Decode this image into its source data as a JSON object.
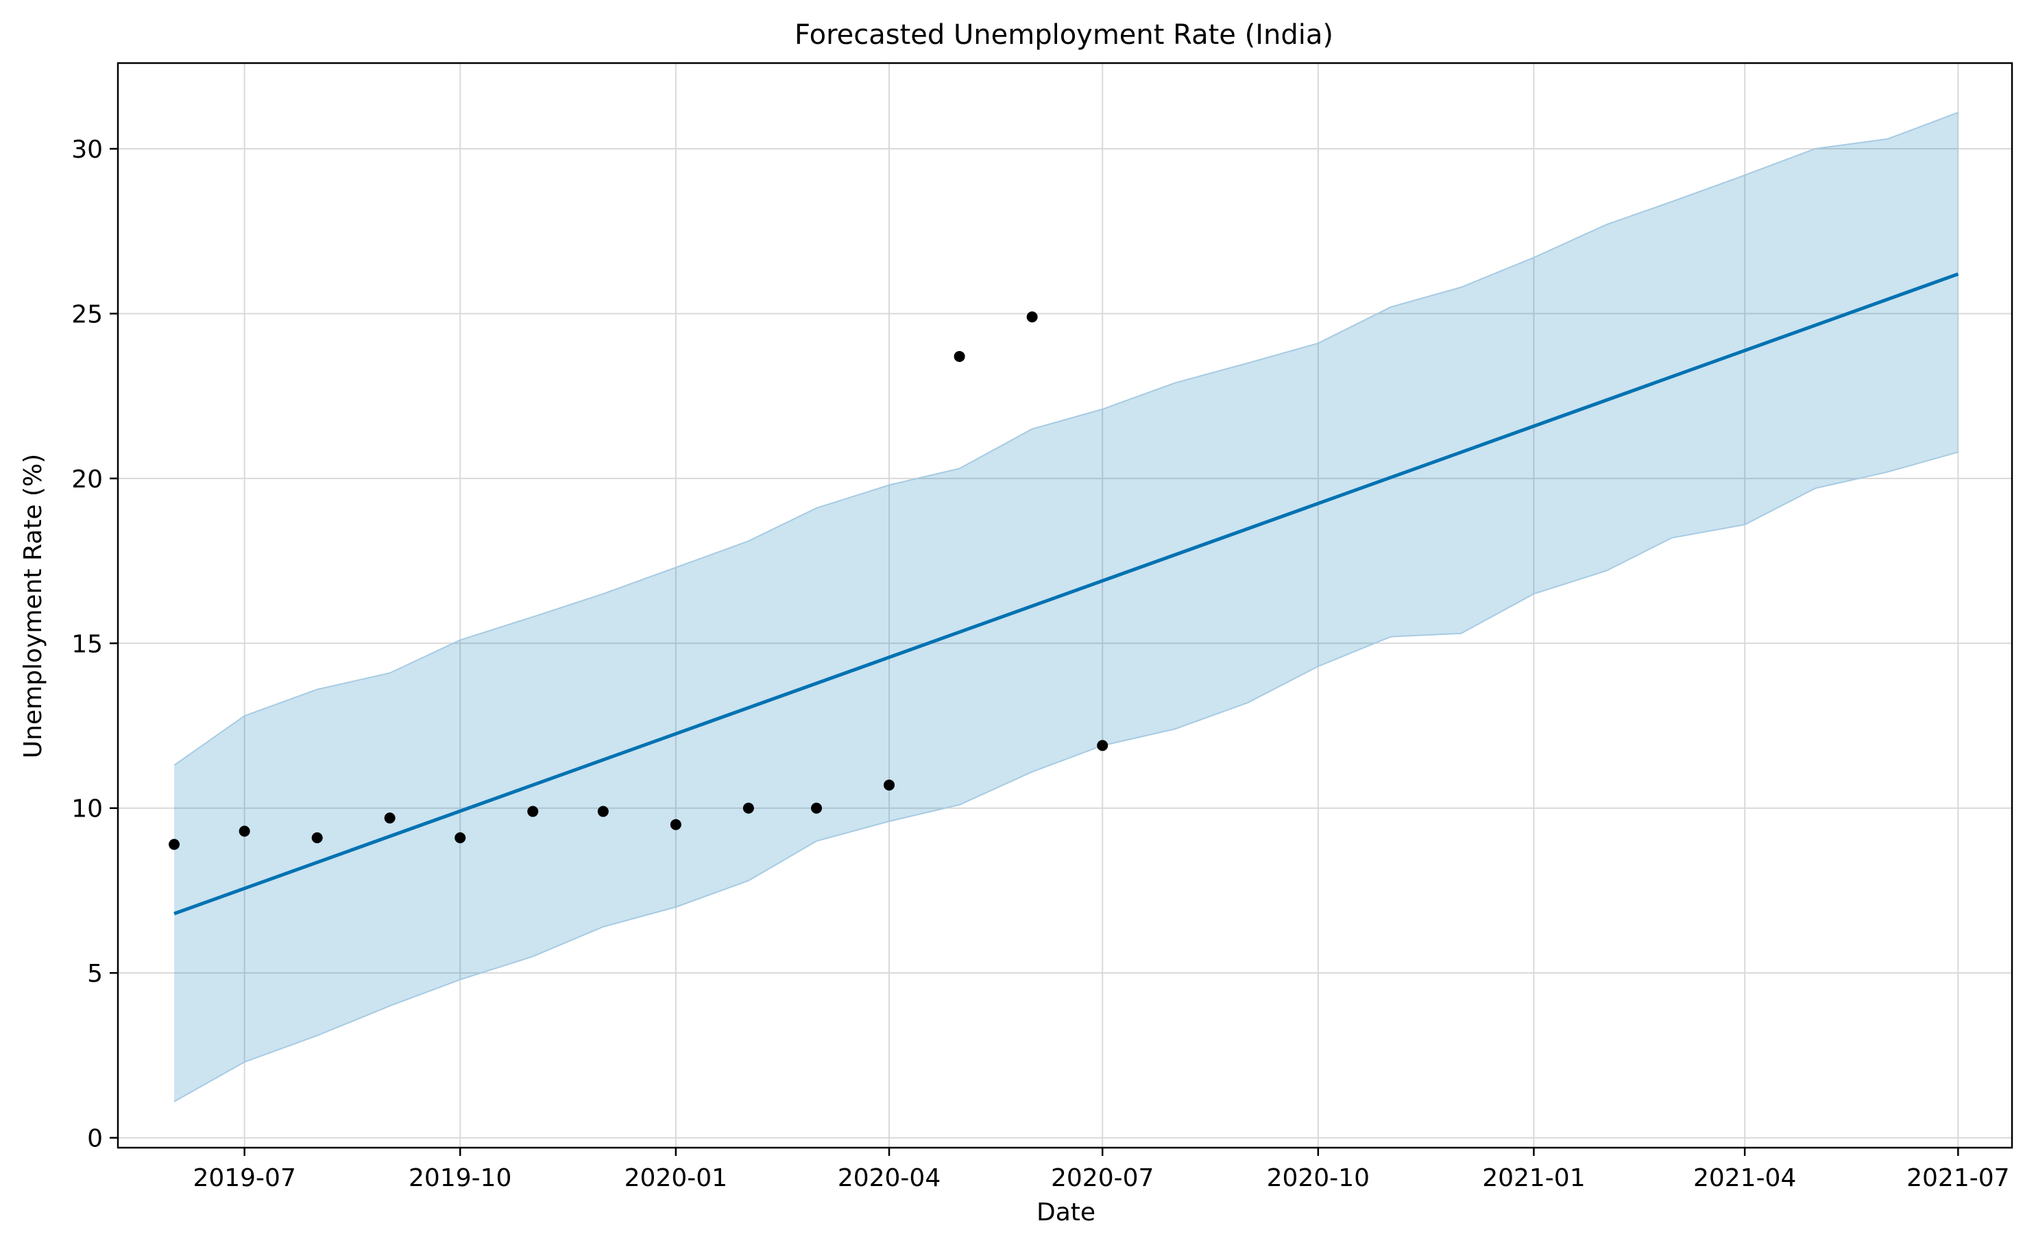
{
  "chart_data": {
    "type": "line",
    "title": "Forecasted Unemployment Rate (India)",
    "xlabel": "Date",
    "ylabel": "Unemployment Rate (%)",
    "x_tick_labels": [
      "2019-07",
      "2019-10",
      "2020-01",
      "2020-04",
      "2020-07",
      "2020-10",
      "2021-01",
      "2021-04",
      "2021-07"
    ],
    "y_tick_labels": [
      "0",
      "5",
      "10",
      "15",
      "20",
      "25",
      "30"
    ],
    "ylim": [
      -0.3,
      32.6
    ],
    "xlim": [
      "2019-05-08",
      "2021-07-24"
    ],
    "grid": true,
    "dates": [
      "2019-06-01",
      "2019-07-01",
      "2019-08-01",
      "2019-09-01",
      "2019-10-01",
      "2019-11-01",
      "2019-12-01",
      "2020-01-01",
      "2020-02-01",
      "2020-03-01",
      "2020-04-01",
      "2020-05-01",
      "2020-06-01",
      "2020-07-01",
      "2020-08-01",
      "2020-09-01",
      "2020-10-01",
      "2020-11-01",
      "2020-12-01",
      "2021-01-01",
      "2021-02-01",
      "2021-03-01",
      "2021-04-01",
      "2021-05-01",
      "2021-06-01",
      "2021-07-01"
    ],
    "series": [
      {
        "role": "interval",
        "color": "#a6cbe3",
        "fill_color": "#0072b2",
        "upper": [
          11.3,
          12.8,
          13.6,
          14.1,
          15.1,
          15.8,
          16.5,
          17.3,
          18.1,
          19.1,
          19.8,
          20.3,
          21.5,
          22.1,
          22.9,
          23.5,
          24.1,
          25.2,
          25.8,
          26.7,
          27.7,
          28.4,
          29.2,
          30.0,
          30.3,
          31.1
        ],
        "lower": [
          1.1,
          2.3,
          3.1,
          4.0,
          4.8,
          5.5,
          6.4,
          7.0,
          7.8,
          9.0,
          9.6,
          10.1,
          11.1,
          11.9,
          12.4,
          13.2,
          14.3,
          15.2,
          15.3,
          16.5,
          17.2,
          18.2,
          18.6,
          19.7,
          20.2,
          20.8
        ]
      },
      {
        "role": "trend",
        "color": "#0072b2",
        "x": [
          "2019-06-01",
          "2021-07-01"
        ],
        "y": [
          6.8,
          26.2
        ]
      },
      {
        "role": "actual",
        "color": "#000000",
        "x": [
          "2019-06-01",
          "2019-07-01",
          "2019-08-01",
          "2019-09-01",
          "2019-10-01",
          "2019-11-01",
          "2019-12-01",
          "2020-01-01",
          "2020-02-01",
          "2020-03-01",
          "2020-04-01",
          "2020-05-01",
          "2020-06-01",
          "2020-07-01"
        ],
        "y": [
          8.9,
          9.3,
          9.1,
          9.7,
          9.1,
          9.9,
          9.9,
          9.5,
          10.0,
          10.0,
          10.7,
          23.7,
          24.9,
          11.9
        ]
      }
    ]
  }
}
